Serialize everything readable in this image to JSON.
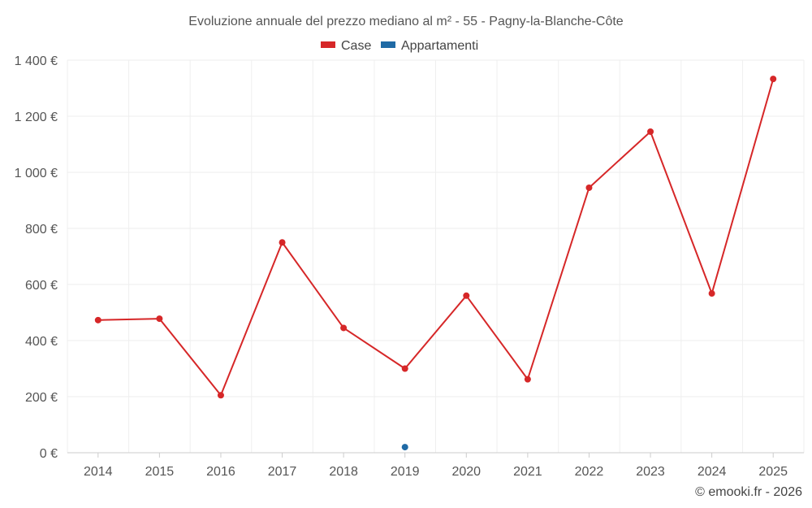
{
  "chart_data": {
    "type": "line",
    "title": "Evoluzione annuale del prezzo mediano al m² - 55 - Pagny-la-Blanche-Côte",
    "categories": [
      "2014",
      "2015",
      "2016",
      "2017",
      "2018",
      "2019",
      "2020",
      "2021",
      "2022",
      "2023",
      "2024",
      "2025"
    ],
    "ylim": [
      0,
      1400
    ],
    "yticks": [
      0,
      200,
      400,
      600,
      800,
      1000,
      1200,
      1400
    ],
    "ytick_labels": [
      "0 €",
      "200 €",
      "400 €",
      "600 €",
      "800 €",
      "1 000 €",
      "1 200 €",
      "1 400 €"
    ],
    "grid": true,
    "legend_position": "top-center",
    "series": [
      {
        "name": "Case",
        "color": "#d62728",
        "values": [
          473,
          478,
          205,
          750,
          445,
          300,
          560,
          262,
          945,
          1145,
          568,
          1333
        ]
      },
      {
        "name": "Appartamenti",
        "color": "#1f6aa5",
        "values": [
          null,
          null,
          null,
          null,
          null,
          20,
          null,
          null,
          null,
          null,
          null,
          null
        ]
      }
    ]
  },
  "credit": "© emooki.fr - 2026"
}
